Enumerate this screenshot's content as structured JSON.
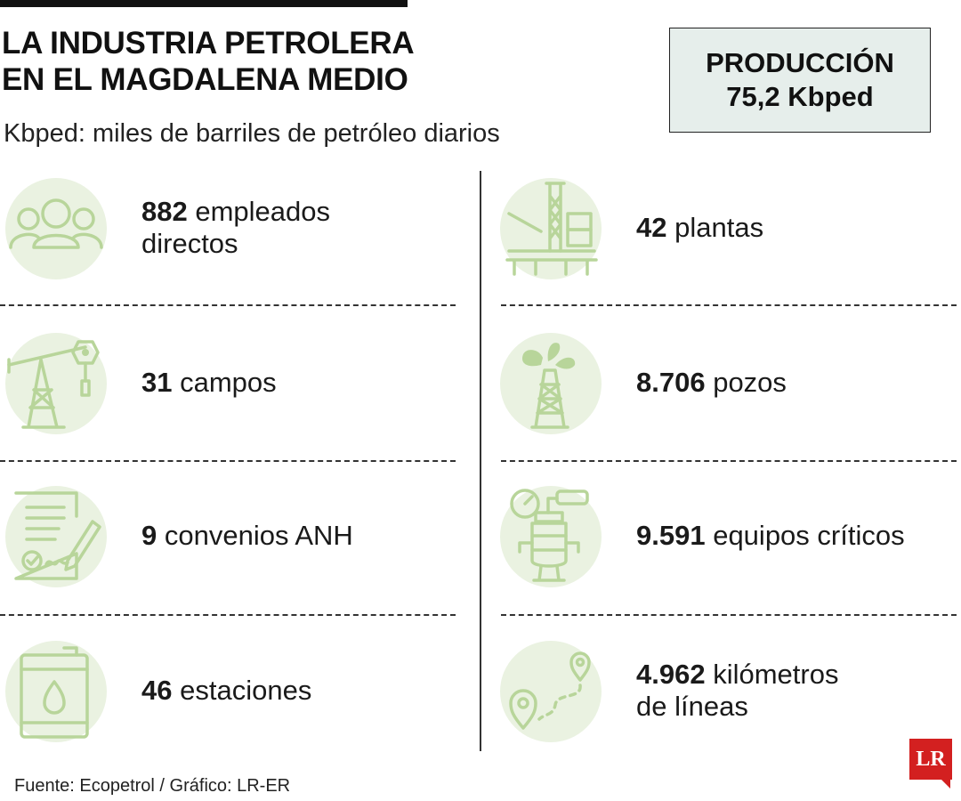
{
  "header": {
    "title_line1": "LA INDUSTRIA PETROLERA",
    "title_line2": "EN EL MAGDALENA MEDIO",
    "subtitle": "Kbped: miles de barriles de petróleo diarios"
  },
  "production": {
    "label": "PRODUCCIÓN",
    "value": "75,2 Kbped"
  },
  "stats_left": [
    {
      "number": "882",
      "text": "empleados",
      "text2": "directos",
      "icon": "people-group-icon"
    },
    {
      "number": "31",
      "text": "campos",
      "icon": "pumpjack-icon"
    },
    {
      "number": "9",
      "text": "convenios ANH",
      "icon": "signed-contract-icon"
    },
    {
      "number": "46",
      "text": "estaciones",
      "icon": "oil-barrel-icon"
    }
  ],
  "stats_right": [
    {
      "number": "42",
      "text": "plantas",
      "icon": "offshore-platform-icon"
    },
    {
      "number": "8.706",
      "text": "pozos",
      "icon": "oil-well-gusher-icon"
    },
    {
      "number": "9.591",
      "text": "equipos críticos",
      "icon": "pressure-equipment-icon"
    },
    {
      "number": "4.962",
      "text": "kilómetros",
      "text2": "de líneas",
      "icon": "route-pins-icon"
    }
  ],
  "footer": {
    "source": "Fuente: Ecopetrol / Gráfico: LR-ER",
    "logo": "LR"
  },
  "colors": {
    "icon_stroke": "#b8d59a",
    "icon_bg": "#eaf2e1",
    "box_bg": "#e6eeeb",
    "logo_red": "#d32020"
  }
}
